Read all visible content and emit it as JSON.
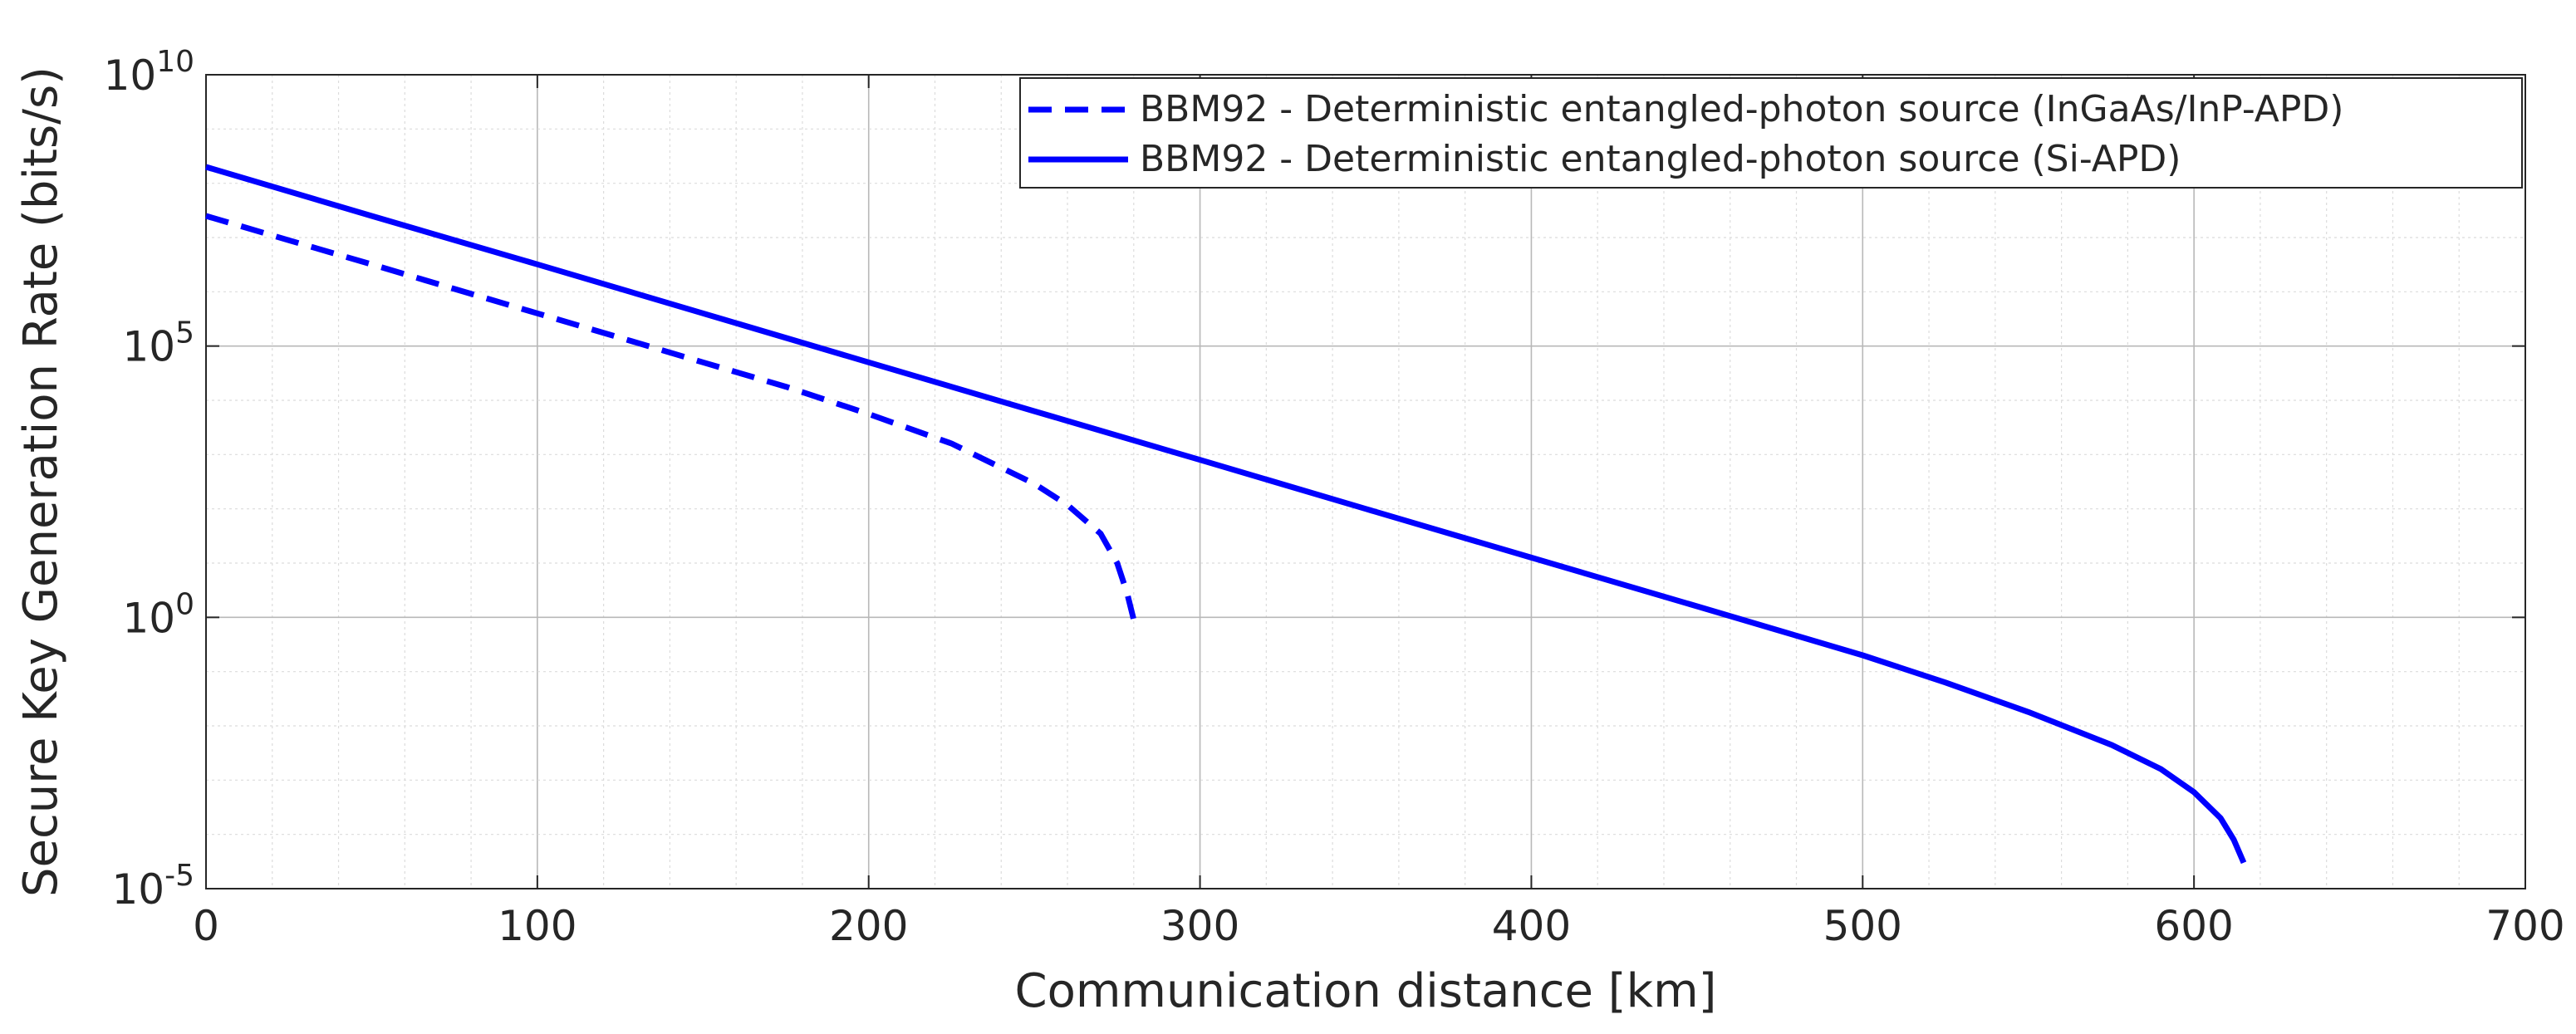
{
  "chart_data": {
    "type": "line",
    "title": "",
    "xlabel": "Communication distance [km]",
    "ylabel": "Secure Key Generation Rate (bits/s)",
    "xlim": [
      0,
      700
    ],
    "ylim": [
      1e-05,
      10000000000.0
    ],
    "y_scale": "log",
    "grid": true,
    "legend_position": "top-right",
    "x_ticks": [
      0,
      100,
      200,
      300,
      400,
      500,
      600,
      700
    ],
    "x_tick_labels": [
      "0",
      "100",
      "200",
      "300",
      "400",
      "500",
      "600",
      "700"
    ],
    "y_ticks": [
      1e-05,
      1,
      100000.0,
      10000000000.0
    ],
    "y_tick_labels": [
      {
        "base": "10",
        "exp": "-5"
      },
      {
        "base": "10",
        "exp": "0"
      },
      {
        "base": "10",
        "exp": "5"
      },
      {
        "base": "10",
        "exp": "10"
      }
    ],
    "series": [
      {
        "name": "BBM92 - Deterministic entangled-photon source (InGaAs/InP-APD)",
        "style": "dashed",
        "color": "#0000ff",
        "x": [
          0,
          25,
          50,
          75,
          100,
          125,
          150,
          175,
          200,
          225,
          250,
          260,
          270,
          275,
          278,
          280
        ],
        "y": [
          25000000.0,
          8900000.0,
          3200000.0,
          1130000.0,
          400000.0,
          142000.0,
          50000.0,
          17800.0,
          5600.0,
          1600.0,
          290,
          118,
          35,
          10,
          2.8,
          0.9
        ]
      },
      {
        "name": "BBM92 - Deterministic entangled-photon source (Si-APD)",
        "style": "solid",
        "color": "#0000ff",
        "x": [
          0,
          50,
          100,
          150,
          200,
          250,
          300,
          350,
          400,
          450,
          500,
          525,
          550,
          575,
          590,
          600,
          608,
          612,
          615
        ],
        "y": [
          200000000.0,
          25000000.0,
          3200000.0,
          400000.0,
          50000.0,
          6300.0,
          800,
          100,
          12.6,
          1.6,
          0.2,
          0.063,
          0.018,
          0.0045,
          0.0016,
          0.0006,
          0.0002,
          8e-05,
          3e-05
        ]
      }
    ]
  }
}
